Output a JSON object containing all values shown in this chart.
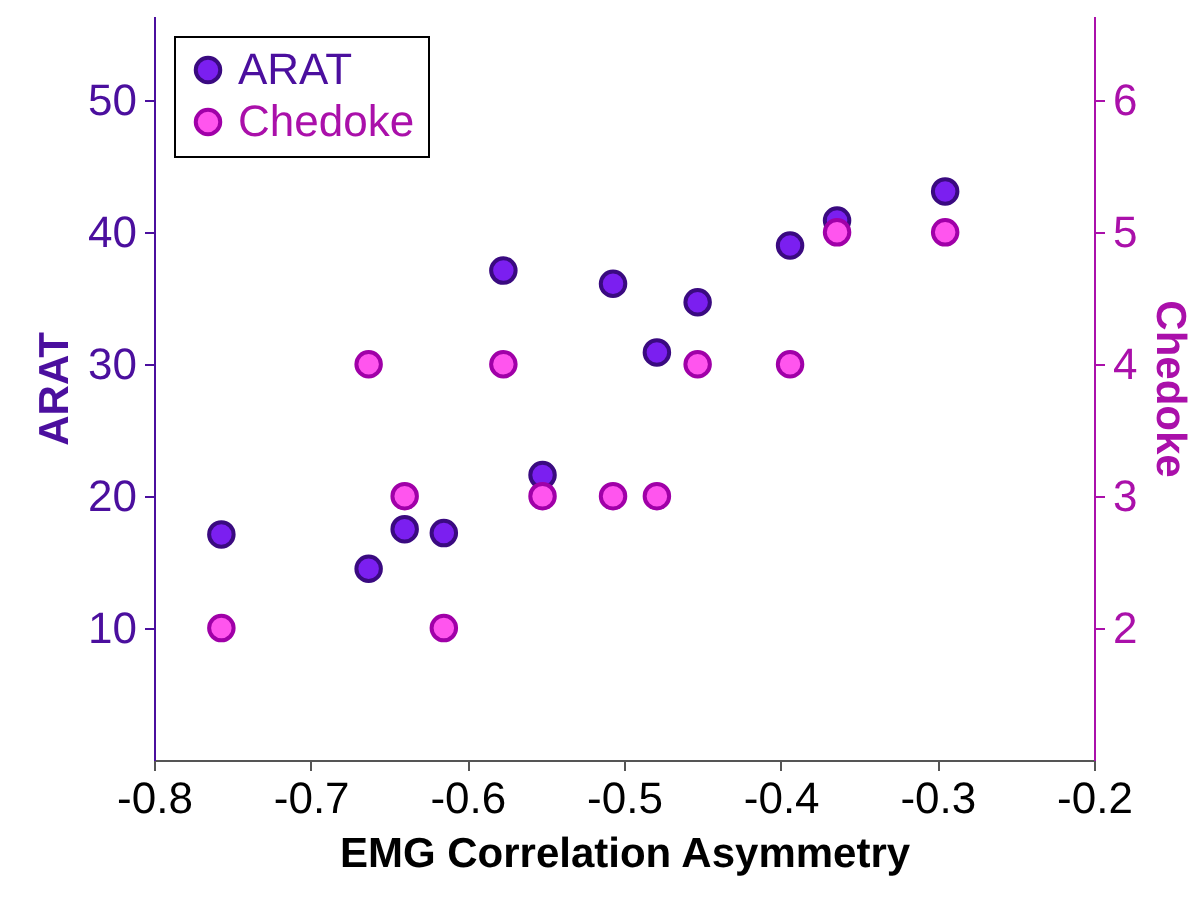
{
  "chart_data": {
    "type": "scatter",
    "xlabel": "EMG Correlation Asymmetry",
    "ylabel": "ARAT",
    "y2label": "Chedoke",
    "x": [
      -0.757,
      -0.663,
      -0.64,
      -0.615,
      -0.577,
      -0.552,
      -0.507,
      -0.479,
      -0.453,
      -0.394,
      -0.364,
      -0.295
    ],
    "series": [
      {
        "name": "ARAT",
        "color": "#7b1ff0",
        "values": [
          17.1,
          14.5,
          17.5,
          17.2,
          37.1,
          21.6,
          36.1,
          30.9,
          34.7,
          39.0,
          40.9,
          43.1
        ]
      },
      {
        "name": "Chedoke",
        "color": "#ff55ee",
        "axis": "y2",
        "values": [
          2,
          4,
          3,
          2,
          4,
          3,
          3,
          3,
          4,
          4,
          5,
          5
        ]
      }
    ],
    "xlim": [
      -0.8,
      -0.2
    ],
    "xticks": [
      -0.8,
      -0.7,
      -0.6,
      -0.5,
      -0.4,
      -0.3,
      -0.2
    ],
    "ylim": [
      0,
      56.4
    ],
    "yticks": [
      10,
      20,
      30,
      40,
      50
    ],
    "y2lim": [
      1,
      6.64
    ],
    "y2ticks": [
      2,
      3,
      4,
      5,
      6
    ],
    "grid": false,
    "legend": "top left",
    "marker": "circle"
  }
}
